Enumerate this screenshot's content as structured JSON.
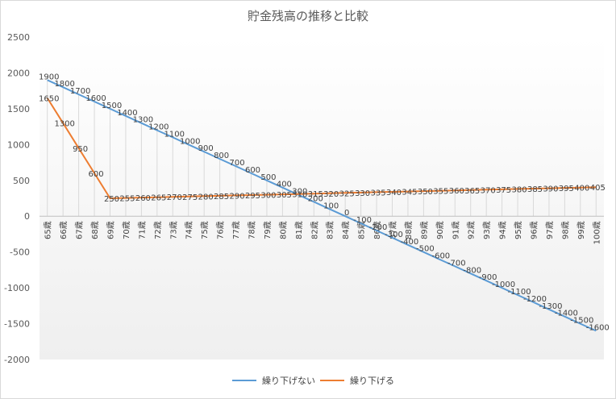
{
  "chart_data": {
    "type": "line",
    "title": "貯金残高の推移と比較",
    "categories": [
      "65歳",
      "66歳",
      "67歳",
      "68歳",
      "69歳",
      "70歳",
      "71歳",
      "72歳",
      "73歳",
      "74歳",
      "75歳",
      "76歳",
      "77歳",
      "78歳",
      "79歳",
      "80歳",
      "81歳",
      "82歳",
      "83歳",
      "84歳",
      "85歳",
      "86歳",
      "87歳",
      "88歳",
      "89歳",
      "90歳",
      "91歳",
      "92歳",
      "93歳",
      "94歳",
      "95歳",
      "96歳",
      "97歳",
      "98歳",
      "99歳",
      "100歳"
    ],
    "series": [
      {
        "name": "繰り下げない",
        "color": "#5b9bd5",
        "values": [
          1900,
          1800,
          1700,
          1600,
          1500,
          1400,
          1300,
          1200,
          1100,
          1000,
          900,
          800,
          700,
          600,
          500,
          400,
          300,
          200,
          100,
          0,
          -100,
          -200,
          -300,
          -400,
          -500,
          -600,
          -700,
          -800,
          -900,
          -1000,
          -1100,
          -1200,
          -1300,
          -1400,
          -1500,
          -1600
        ]
      },
      {
        "name": "繰り下げる",
        "color": "#ed7d31",
        "values": [
          1650,
          1300,
          950,
          600,
          250,
          255,
          260,
          265,
          270,
          275,
          280,
          285,
          290,
          295,
          300,
          305,
          310,
          315,
          320,
          325,
          330,
          335,
          340,
          345,
          350,
          355,
          360,
          365,
          370,
          375,
          380,
          385,
          390,
          395,
          400,
          405
        ]
      }
    ],
    "ylim": [
      -2000,
      2500
    ],
    "yticks": [
      2500,
      2000,
      1500,
      1000,
      500,
      0,
      -500,
      -1000,
      -1500,
      -2000
    ],
    "xlabel": "",
    "ylabel": "",
    "grid": "vertical drop lines per category",
    "legend_position": "bottom"
  }
}
